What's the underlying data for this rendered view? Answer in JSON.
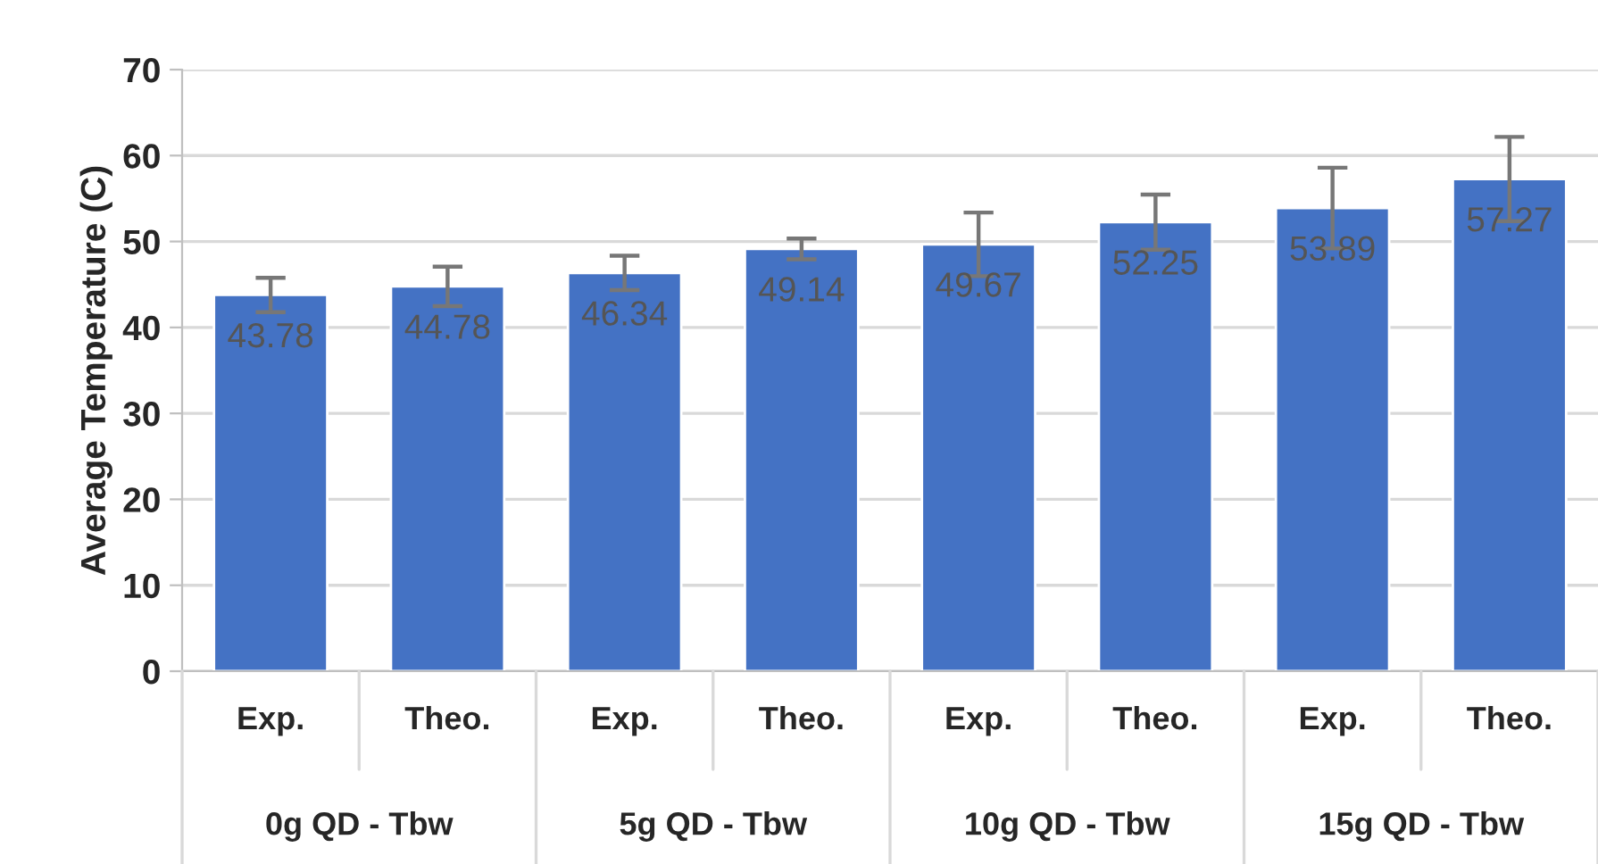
{
  "chart_data": {
    "type": "bar",
    "ylabel": "Average Temperature (C)",
    "categories": [
      "Exp.",
      "Theo.",
      "Exp.",
      "Theo.",
      "Exp.",
      "Theo.",
      "Exp.",
      "Theo."
    ],
    "values": [
      43.78,
      44.78,
      46.34,
      49.14,
      49.67,
      52.25,
      53.89,
      57.27
    ],
    "errors": [
      2,
      2.3,
      2,
      1.2,
      3.7,
      3.2,
      4.7,
      4.9
    ],
    "color": "#4472c4",
    "data_labels": true,
    "ylim": [
      0,
      70
    ],
    "yticks": [
      0,
      10,
      20,
      30,
      40,
      50,
      60,
      70
    ],
    "grid": "y",
    "annotations": [
      "0g QD - Tbw",
      "5g QD - Tbw",
      "10g QD - Tbw",
      "15g QD - Tbw"
    ]
  }
}
